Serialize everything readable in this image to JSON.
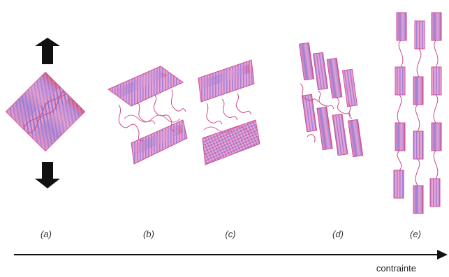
{
  "stages": [
    {
      "id": "a",
      "label": "(a)"
    },
    {
      "id": "b",
      "label": "(b)"
    },
    {
      "id": "c",
      "label": "(c)"
    },
    {
      "id": "d",
      "label": "(d)"
    },
    {
      "id": "e",
      "label": "(e)"
    }
  ],
  "axis": {
    "label": "contrainte"
  },
  "colors": {
    "pink": "#e58fc3",
    "violet": "#9b7fd4",
    "red": "#e0405a",
    "chain": "#c84a8a",
    "arrow": "#111111",
    "axis_line": "#111111"
  }
}
